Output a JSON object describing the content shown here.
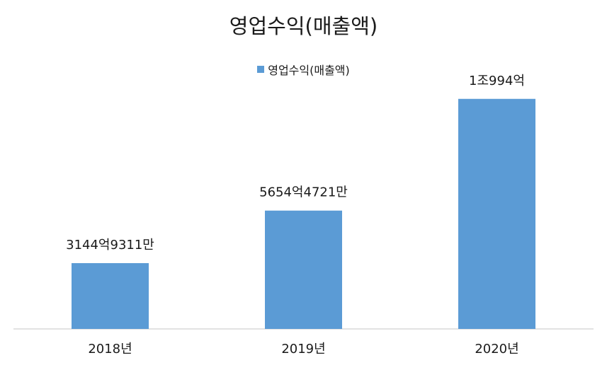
{
  "chart_data": {
    "type": "bar",
    "title": "영업수익(매출액)",
    "categories": [
      "2018년",
      "2019년",
      "2020년"
    ],
    "series": [
      {
        "name": "영업수익(매출액)",
        "values": [
          3144.9311,
          5654.4721,
          10994
        ],
        "data_labels": [
          "3144억9311만",
          "5654억4721만",
          "1조994억"
        ]
      }
    ],
    "unit": "억",
    "legend_position": "top",
    "grid": false,
    "ylim": [
      0,
      12000
    ]
  },
  "colors": {
    "bar": "#5b9bd5",
    "axis": "#d9d9d9"
  }
}
